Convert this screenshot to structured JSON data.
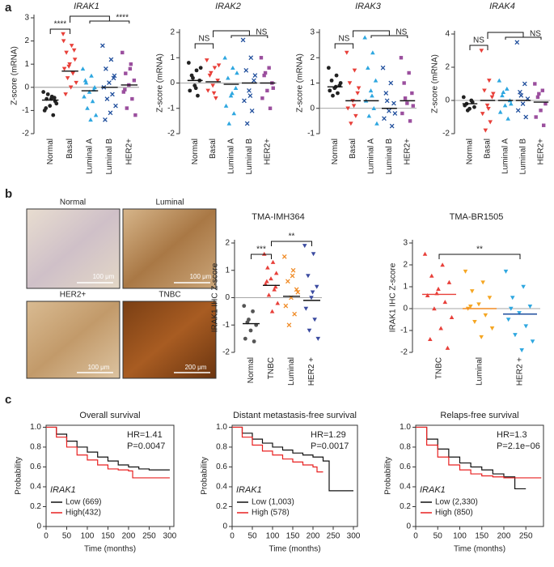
{
  "panel_labels": [
    "a",
    "b",
    "c"
  ],
  "images": [
    {
      "label": "Normal",
      "scale_bar": "100 μm"
    },
    {
      "label": "Luminal",
      "scale_bar": "100 μm"
    },
    {
      "label": "HER2+",
      "scale_bar": "100 μm"
    },
    {
      "label": "TNBC",
      "scale_bar": "200 μm"
    }
  ],
  "chart_data": [
    {
      "type": "strip",
      "title": "IRAK1",
      "ylabel": "Z-score (mRNA)",
      "categories": [
        "Normal",
        "Basal",
        "Luminal A",
        "Luminal B",
        "HER2+"
      ],
      "colors": [
        "#222222",
        "#e8403a",
        "#2ea7e0",
        "#1f4e9c",
        "#9b4f9e"
      ],
      "markers": [
        "circle",
        "tri_down",
        "tri_up",
        "x",
        "square"
      ],
      "values": [
        [
          -0.2,
          -0.4,
          -0.5,
          -0.6,
          -0.8,
          -1.0,
          -1.2,
          -0.3,
          -0.7,
          -0.5,
          -0.9,
          -0.45
        ],
        [
          2.3,
          1.8,
          1.5,
          1.2,
          1.0,
          0.8,
          0.6,
          0.4,
          0.2,
          0,
          -0.3,
          1.6,
          0.9,
          2.0
        ],
        [
          0.8,
          0.5,
          0.2,
          0,
          -0.2,
          -0.4,
          -0.6,
          -0.9,
          -1.2,
          -1.4,
          0.3,
          -0.1
        ],
        [
          1.8,
          1.2,
          0.8,
          0.5,
          0.2,
          0,
          -0.3,
          -0.5,
          -0.8,
          -1.1,
          -1.4,
          0.4
        ],
        [
          1.5,
          1.0,
          0.6,
          0.3,
          0.1,
          -0.2,
          -0.5,
          -0.9,
          -1.2,
          0.8,
          -0.1
        ]
      ],
      "means": [
        -0.55,
        0.7,
        -0.15,
        0,
        0.1
      ],
      "ylim": [
        -2,
        3
      ],
      "yticks": [
        -2,
        -1,
        0,
        1,
        2,
        3
      ],
      "comparisons": [
        {
          "label": "****",
          "a": 0,
          "b": 1
        },
        {
          "label": "****",
          "a": 1,
          "b": [
            2,
            4
          ]
        }
      ]
    },
    {
      "type": "strip",
      "title": "IRAK2",
      "ylabel": "Z-score (mRNA)",
      "categories": [
        "Normal",
        "Basal",
        "Luminal A",
        "Luminal B",
        "HER2+"
      ],
      "colors": [
        "#222222",
        "#e8403a",
        "#2ea7e0",
        "#1f4e9c",
        "#9b4f9e"
      ],
      "markers": [
        "circle",
        "tri_down",
        "tri_up",
        "x",
        "square"
      ],
      "values": [
        [
          0.8,
          0.5,
          0.3,
          0.1,
          -0.1,
          -0.3,
          -0.5,
          0.2,
          0.6,
          -0.2
        ],
        [
          0.9,
          0.6,
          0.3,
          0.1,
          -0.1,
          -0.3,
          -0.6,
          0.4,
          0.7,
          -0.4
        ],
        [
          1.0,
          0.6,
          0.2,
          -0.2,
          -0.5,
          -0.9,
          -1.2,
          -1.6,
          0.4,
          -0.4
        ],
        [
          1.7,
          1.0,
          0.5,
          0.1,
          -0.3,
          -0.7,
          -1.1,
          -1.6,
          0.3,
          -0.5
        ],
        [
          1.0,
          0.6,
          0.3,
          0,
          -0.3,
          -0.6,
          -1.0,
          0.4,
          -0.2
        ]
      ],
      "means": [
        0.1,
        0.05,
        -0.05,
        0,
        0
      ],
      "ylim": [
        -2,
        2
      ],
      "yticks": [
        -2,
        -1,
        0,
        1,
        2
      ],
      "comparisons": [
        {
          "label": "NS",
          "a": 0,
          "b": 1
        },
        {
          "label": "NS",
          "a": 1,
          "b": [
            2,
            4
          ]
        }
      ]
    },
    {
      "type": "strip",
      "title": "IRAK3",
      "ylabel": "Z-score (mRNA)",
      "categories": [
        "Normal",
        "Basal",
        "Luminal A",
        "Luminal B",
        "HER2+"
      ],
      "colors": [
        "#222222",
        "#e8403a",
        "#2ea7e0",
        "#1f4e9c",
        "#9b4f9e"
      ],
      "markers": [
        "circle",
        "tri_down",
        "tri_up",
        "x",
        "square"
      ],
      "values": [
        [
          1.6,
          1.3,
          1.1,
          0.9,
          0.8,
          0.7,
          0.6,
          0.5,
          1.0,
          0.85
        ],
        [
          2.2,
          1.5,
          1.0,
          0.6,
          0.3,
          0,
          -0.3,
          -0.6,
          0.8,
          0.1
        ],
        [
          2.8,
          2.2,
          1.6,
          1.1,
          0.7,
          0.3,
          0,
          -0.3,
          -0.6,
          0.5
        ],
        [
          1.6,
          1.0,
          0.6,
          0.2,
          -0.1,
          -0.4,
          -0.7,
          0.3,
          -0.2
        ],
        [
          2.0,
          1.4,
          1.0,
          0.6,
          0.2,
          -0.2,
          -0.5,
          0.4,
          0.1
        ]
      ],
      "means": [
        0.85,
        0.3,
        0.3,
        0,
        0.3
      ],
      "ylim": [
        -1,
        3
      ],
      "yticks": [
        -1,
        0,
        1,
        2,
        3
      ],
      "comparisons": [
        {
          "label": "NS",
          "a": 0,
          "b": 1
        },
        {
          "label": "NS",
          "a": 1,
          "b": [
            2,
            4
          ]
        }
      ]
    },
    {
      "type": "strip",
      "title": "IRAK4",
      "ylabel": "Z-score (mRNA)",
      "categories": [
        "Normal",
        "Basal",
        "Luminal A",
        "Luminal B",
        "HER2+"
      ],
      "colors": [
        "#222222",
        "#e8403a",
        "#2ea7e0",
        "#1f4e9c",
        "#9b4f9e"
      ],
      "markers": [
        "circle",
        "tri_down",
        "tri_up",
        "x",
        "square"
      ],
      "values": [
        [
          0.2,
          0,
          -0.2,
          -0.4,
          -0.5,
          -0.3,
          -0.1,
          -0.6
        ],
        [
          3.0,
          1.2,
          0.6,
          0.2,
          -0.3,
          -0.8,
          -1.3,
          -1.8,
          0.4,
          -0.5
        ],
        [
          1.2,
          0.7,
          0.3,
          0,
          -0.3,
          -0.7,
          -1.1,
          0.5,
          -0.2
        ],
        [
          3.5,
          1.0,
          0.5,
          0.1,
          -0.2,
          -0.6,
          -1.0,
          0.3
        ],
        [
          1.0,
          0.6,
          0.2,
          -0.2,
          -0.6,
          -1.0,
          -1.5,
          0.4
        ]
      ],
      "means": [
        -0.2,
        0,
        0,
        0,
        -0.1
      ],
      "ylim": [
        -2,
        4
      ],
      "yticks": [
        -2,
        0,
        2,
        4
      ],
      "comparisons": [
        {
          "label": "NS",
          "a": 0,
          "b": 1
        },
        {
          "label": "NS",
          "a": 1,
          "b": [
            2,
            4
          ]
        }
      ]
    },
    {
      "type": "strip",
      "title": "TMA-IMH364",
      "ylabel": "IRAK1 IHC Z-score",
      "categories": [
        "Normal",
        "TNBC",
        "Luminal",
        "HER2 +"
      ],
      "colors": [
        "#555555",
        "#e8403a",
        "#f08a24",
        "#3b4ba0"
      ],
      "markers": [
        "circle",
        "tri_up",
        "x",
        "tri_down"
      ],
      "values": [
        [
          -0.3,
          -0.5,
          -0.9,
          -1.0,
          -1.2,
          -1.5,
          -1.6,
          -0.8
        ],
        [
          1.6,
          1.3,
          1.1,
          0.9,
          0.7,
          0.5,
          0.3,
          0.1,
          -0.2,
          -0.5,
          0.6,
          0.4
        ],
        [
          1.5,
          1.0,
          0.6,
          0.3,
          0,
          -0.3,
          -0.6,
          -1.0,
          0.2,
          0.8
        ],
        [
          1.9,
          1.6,
          0.8,
          0.4,
          0,
          -0.4,
          -0.8,
          -1.2,
          -1.5,
          0.2
        ]
      ],
      "means": [
        -0.95,
        0.45,
        0.05,
        -0.1
      ],
      "ylim": [
        -2,
        2
      ],
      "yticks": [
        -2,
        -1,
        0,
        1,
        2
      ],
      "comparisons": [
        {
          "label": "***",
          "a": 0,
          "b": 1
        },
        {
          "label": "**",
          "a": 1,
          "b": 3
        }
      ]
    },
    {
      "type": "strip",
      "title": "TMA-BR1505",
      "ylabel": "IRAK1 IHC Z-score",
      "categories": [
        "TNBC",
        "Luminal",
        "HER2 +"
      ],
      "colors": [
        "#e8403a",
        "#f5a623",
        "#2ea7e0"
      ],
      "markers": [
        "tri_up",
        "tri_down",
        "tri_down"
      ],
      "mean_colors": [
        "#e8403a",
        "#f08a24",
        "#1f4e9c"
      ],
      "values": [
        [
          2.5,
          2.0,
          1.5,
          1.2,
          0.9,
          0.6,
          0.3,
          0,
          -0.4,
          -0.9,
          -1.4,
          -1.8,
          0.7
        ],
        [
          1.7,
          1.2,
          0.8,
          0.5,
          0.2,
          0,
          -0.3,
          -0.6,
          -0.9,
          -1.3,
          0.1
        ],
        [
          1.7,
          1.0,
          0.5,
          0.1,
          -0.2,
          -0.5,
          -0.8,
          -1.2,
          -1.5,
          -1.9,
          0
        ]
      ],
      "means": [
        0.65,
        0,
        -0.25
      ],
      "ylim": [
        -2,
        3
      ],
      "yticks": [
        -2,
        -1,
        0,
        1,
        2,
        3
      ],
      "comparisons": [
        {
          "label": "**",
          "a": 0,
          "b": 2
        }
      ]
    },
    {
      "type": "survival",
      "title": "Overall survival",
      "xlabel": "Time (months)",
      "ylabel": "Probability",
      "xlim": [
        0,
        310
      ],
      "xticks": [
        0,
        50,
        100,
        150,
        200,
        250,
        300
      ],
      "ylim": [
        0,
        1.02
      ],
      "yticks": [
        0,
        0.2,
        0.4,
        0.6,
        0.8,
        {
          "value": 1,
          "label": "1.0"
        }
      ],
      "legend_title": "IRAK1",
      "annotations": [
        "HR=1.41",
        "P=0.0047"
      ],
      "series": [
        {
          "name": "Low (669)",
          "color": "#111111",
          "x": [
            0,
            25,
            50,
            75,
            100,
            125,
            150,
            175,
            200,
            225,
            250,
            300
          ],
          "values": [
            1,
            0.93,
            0.86,
            0.8,
            0.75,
            0.7,
            0.66,
            0.62,
            0.6,
            0.58,
            0.57,
            0.57
          ]
        },
        {
          "name": "High(432)",
          "color": "#e82020",
          "x": [
            0,
            25,
            50,
            75,
            100,
            125,
            150,
            175,
            200,
            210,
            225,
            250,
            300
          ],
          "values": [
            1,
            0.9,
            0.8,
            0.72,
            0.67,
            0.62,
            0.58,
            0.57,
            0.56,
            0.49,
            0.49,
            0.49,
            0.49
          ]
        }
      ]
    },
    {
      "type": "survival",
      "title": "Distant metastasis-free survival",
      "xlabel": "Time (months)",
      "ylabel": "Probability",
      "xlim": [
        0,
        310
      ],
      "xticks": [
        0,
        50,
        100,
        150,
        200,
        250,
        300
      ],
      "ylim": [
        0,
        1.02
      ],
      "yticks": [
        0,
        0.2,
        0.4,
        0.6,
        0.8,
        {
          "value": 1,
          "label": "1.0"
        }
      ],
      "legend_title": "IRAK1",
      "annotations": [
        "HR=1.29",
        "P=0.0017"
      ],
      "series": [
        {
          "name": "Low (1,003)",
          "color": "#111111",
          "x": [
            0,
            25,
            50,
            75,
            100,
            125,
            150,
            175,
            200,
            225,
            240,
            300
          ],
          "values": [
            1,
            0.94,
            0.88,
            0.84,
            0.8,
            0.77,
            0.74,
            0.72,
            0.7,
            0.66,
            0.36,
            0.36
          ]
        },
        {
          "name": "High (578)",
          "color": "#e82020",
          "x": [
            0,
            25,
            50,
            75,
            100,
            125,
            150,
            175,
            200,
            210,
            225
          ],
          "values": [
            1,
            0.9,
            0.82,
            0.76,
            0.72,
            0.68,
            0.65,
            0.62,
            0.6,
            0.55,
            0.55
          ]
        }
      ]
    },
    {
      "type": "survival",
      "title": "Relaps-free survival",
      "xlabel": "Time (months)",
      "ylabel": "Probability",
      "xlim": [
        0,
        290
      ],
      "xticks": [
        0,
        50,
        100,
        150,
        200,
        250
      ],
      "ylim": [
        0,
        1.02
      ],
      "yticks": [
        0,
        0.2,
        0.4,
        0.6,
        0.8,
        {
          "value": 1,
          "label": "1.0"
        }
      ],
      "legend_title": "IRAK1",
      "annotations": [
        "HR=1.3",
        "P=2.1e−06"
      ],
      "series": [
        {
          "name": "Low (2,330)",
          "color": "#111111",
          "x": [
            0,
            25,
            50,
            75,
            100,
            125,
            150,
            175,
            200,
            225,
            250
          ],
          "values": [
            1,
            0.88,
            0.78,
            0.7,
            0.64,
            0.6,
            0.57,
            0.53,
            0.5,
            0.38,
            0.38
          ]
        },
        {
          "name": "High (850)",
          "color": "#e82020",
          "x": [
            0,
            25,
            50,
            75,
            100,
            125,
            150,
            175,
            200,
            225,
            285
          ],
          "values": [
            1,
            0.82,
            0.7,
            0.62,
            0.57,
            0.53,
            0.51,
            0.5,
            0.49,
            0.49,
            0.49
          ]
        }
      ]
    }
  ]
}
